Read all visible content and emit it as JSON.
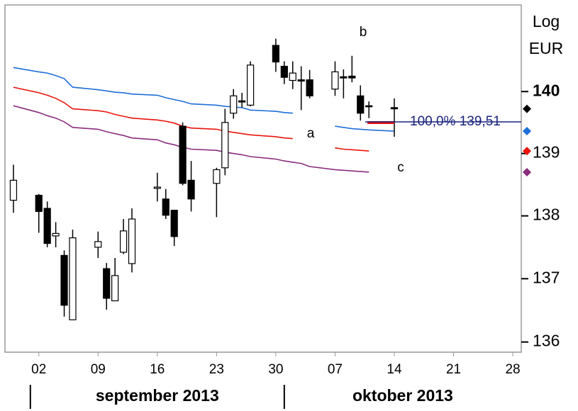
{
  "chart_data": {
    "type": "candlestick",
    "log_scale": true,
    "scale_label": "Log",
    "y_axis_label": "EUR",
    "x": [
      "2013-08-30",
      "2013-09-02",
      "2013-09-03",
      "2013-09-04",
      "2013-09-05",
      "2013-09-06",
      "2013-09-09",
      "2013-09-10",
      "2013-09-11",
      "2013-09-12",
      "2013-09-13",
      "2013-09-16",
      "2013-09-17",
      "2013-09-18",
      "2013-09-19",
      "2013-09-20",
      "2013-09-23",
      "2013-09-24",
      "2013-09-25",
      "2013-09-26",
      "2013-09-27",
      "2013-09-30",
      "2013-10-01",
      "2013-10-02",
      "2013-10-03",
      "2013-10-04",
      "2013-10-07",
      "2013-10-08",
      "2013-10-09",
      "2013-10-10",
      "2013-10-11",
      "2013-10-14"
    ],
    "open": [
      138.25,
      138.33,
      138.12,
      137.68,
      137.37,
      136.35,
      137.5,
      137.16,
      136.65,
      137.42,
      137.24,
      138.44,
      138.27,
      138.09,
      139.44,
      138.57,
      138.52,
      138.77,
      139.65,
      139.85,
      139.78,
      140.75,
      140.41,
      140.18,
      140.19,
      140.19,
      140.04,
      140.24,
      140.25,
      139.93,
      139.77,
      139.74
    ],
    "high": [
      138.82,
      138.35,
      138.23,
      137.9,
      137.45,
      137.78,
      137.75,
      137.25,
      137.33,
      137.95,
      138.12,
      138.69,
      138.43,
      138.09,
      139.5,
      138.88,
      138.77,
      139.72,
      140.04,
      139.98,
      140.49,
      140.86,
      140.49,
      140.49,
      140.41,
      140.35,
      140.49,
      140.36,
      140.58,
      140.1,
      139.84,
      139.89
    ],
    "low": [
      138.05,
      137.73,
      137.5,
      137.5,
      136.4,
      136.35,
      137.33,
      136.51,
      136.65,
      137.39,
      137.1,
      138.23,
      137.95,
      137.52,
      138.49,
      138.07,
      137.98,
      138.65,
      139.56,
      139.74,
      139.76,
      140.32,
      140.12,
      140.04,
      139.7,
      139.89,
      139.93,
      139.89,
      140.15,
      139.53,
      139.57,
      139.27
    ],
    "close": [
      138.57,
      138.07,
      137.56,
      137.72,
      136.58,
      137.65,
      137.59,
      136.69,
      137.05,
      137.76,
      137.95,
      138.46,
      138.01,
      137.67,
      138.52,
      138.27,
      138.74,
      139.5,
      139.93,
      139.83,
      140.43,
      140.48,
      140.23,
      140.3,
      140.17,
      139.93,
      140.32,
      140.22,
      140.22,
      139.65,
      139.76,
      139.72
    ],
    "up_color": "#ffffff",
    "down_color": "#000000",
    "lines": [
      {
        "color": "#1f6fd6",
        "values": [
          140.39,
          140.32,
          140.3,
          140.26,
          140.21,
          140.07,
          140.03,
          140.01,
          139.99,
          139.98,
          139.96,
          139.94,
          139.9,
          139.87,
          139.84,
          139.8,
          139.78,
          139.76,
          139.75,
          139.74,
          139.7,
          139.68,
          139.66,
          139.65,
          null,
          null,
          139.44,
          139.42,
          139.4,
          139.39,
          139.38,
          139.36
        ]
      },
      {
        "color": "#e8150c",
        "values": [
          140.07,
          139.98,
          139.94,
          139.89,
          139.82,
          139.72,
          139.69,
          139.67,
          139.63,
          139.6,
          139.57,
          139.54,
          139.52,
          139.49,
          139.44,
          139.41,
          139.39,
          139.36,
          139.34,
          139.32,
          139.3,
          139.27,
          139.25,
          139.24,
          null,
          null,
          139.09,
          139.07,
          139.06,
          139.05,
          139.04,
          null
        ]
      },
      {
        "color": "#8b2d7e",
        "values": [
          139.77,
          139.66,
          139.61,
          139.57,
          139.51,
          139.42,
          139.39,
          139.35,
          139.32,
          139.29,
          139.25,
          139.22,
          139.17,
          139.14,
          139.1,
          139.07,
          139.05,
          139.02,
          139.0,
          138.98,
          138.95,
          138.91,
          138.88,
          138.86,
          138.84,
          138.79,
          138.74,
          138.73,
          138.72,
          138.71,
          138.7,
          null
        ]
      }
    ],
    "fibonacci": {
      "level": 139.51,
      "label": "100,0% 139,51",
      "color": "#1a237e"
    },
    "annotations": [
      "a",
      "b",
      "c"
    ],
    "xlim": [
      "2013-08-29",
      "2013-10-29"
    ],
    "xticks": [
      {
        "value": "2013-09-02",
        "label": "02"
      },
      {
        "value": "2013-09-09",
        "label": "09"
      },
      {
        "value": "2013-09-16",
        "label": "16"
      },
      {
        "value": "2013-09-23",
        "label": "23"
      },
      {
        "value": "2013-09-30",
        "label": "30"
      },
      {
        "value": "2013-10-07",
        "label": "07"
      },
      {
        "value": "2013-10-14",
        "label": "14"
      },
      {
        "value": "2013-10-21",
        "label": "21"
      },
      {
        "value": "2013-10-28",
        "label": "28"
      }
    ],
    "months": [
      {
        "start": "2013-09-01",
        "label": "september 2013"
      },
      {
        "start": "2013-10-01",
        "label": "oktober 2013"
      }
    ],
    "ylim": [
      135.84,
      141.41
    ],
    "yticks": [
      136,
      137,
      138,
      139,
      140
    ]
  }
}
